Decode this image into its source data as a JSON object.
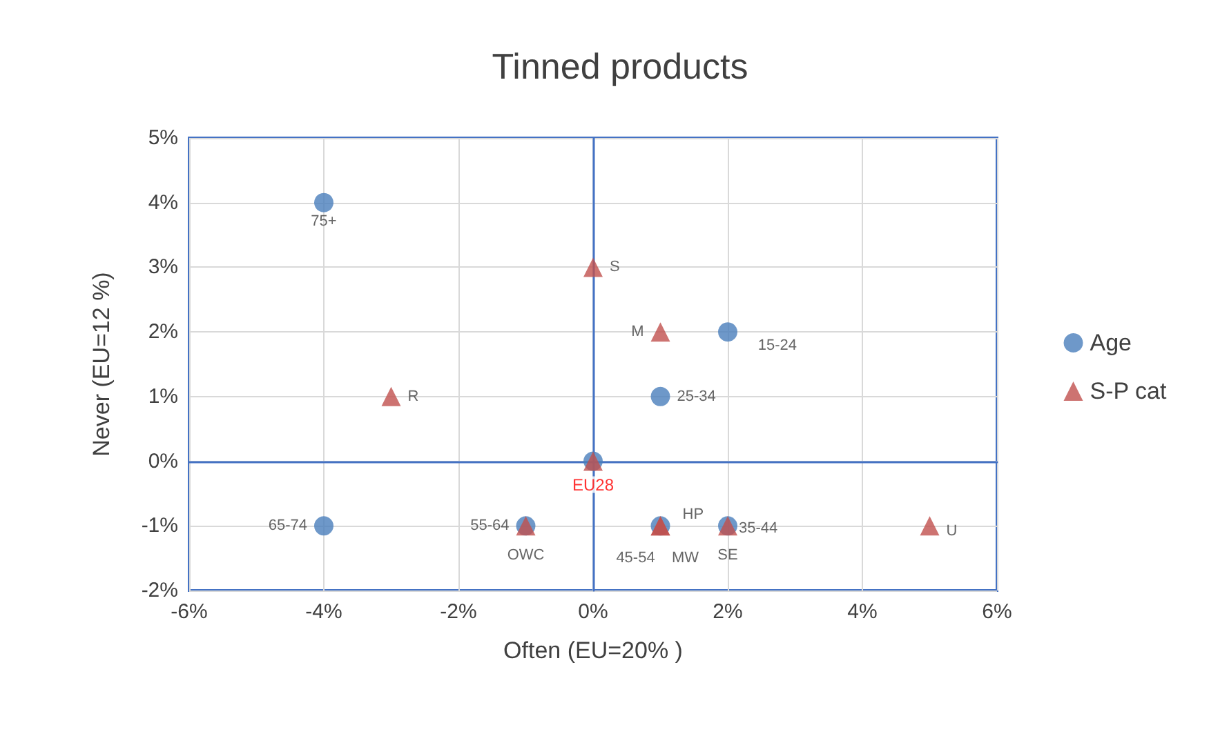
{
  "chart_data": {
    "type": "scatter",
    "title": "Tinned products",
    "xlabel": "Often (EU=20% )",
    "ylabel": "Never (EU=12 %)",
    "xlim": [
      -6,
      6
    ],
    "xticks": [
      {
        "value": -6,
        "label": "-6%"
      },
      {
        "value": -4,
        "label": "-4%"
      },
      {
        "value": -2,
        "label": "-2%"
      },
      {
        "value": 0,
        "label": "0%"
      },
      {
        "value": 2,
        "label": "2%"
      },
      {
        "value": 4,
        "label": "4%"
      },
      {
        "value": 6,
        "label": "6%"
      }
    ],
    "ylim": [
      -2,
      5
    ],
    "yticks": [
      {
        "value": -2,
        "label": "-2%"
      },
      {
        "value": -1,
        "label": "-1%"
      },
      {
        "value": 0,
        "label": "0%"
      },
      {
        "value": 1,
        "label": "1%"
      },
      {
        "value": 2,
        "label": "2%"
      },
      {
        "value": 3,
        "label": "3%"
      },
      {
        "value": 4,
        "label": "4%"
      },
      {
        "value": 5,
        "label": "5%"
      }
    ],
    "grid": true,
    "legend": "right",
    "annotations": [
      {
        "text": "EU28",
        "x": 0,
        "y": 0
      }
    ],
    "series": [
      {
        "name": "Age",
        "color": "#4a7ebb",
        "marker": "circle",
        "x": [
          -4,
          2,
          1,
          -4,
          -1,
          1,
          2,
          0
        ],
        "values": [
          4,
          2,
          1,
          -1,
          -1,
          -1,
          -1,
          0
        ],
        "value_labels": [
          "75+",
          "15-24",
          "25-34",
          "65-74",
          "55-64",
          "45-54",
          "35-44",
          null
        ]
      },
      {
        "name": "S-P cat",
        "color": "#c0504d",
        "marker": "triangle",
        "x": [
          0,
          1,
          -3,
          5,
          -1,
          1,
          2,
          1,
          0
        ],
        "values": [
          3,
          2,
          1,
          -1,
          -1,
          -1,
          -1,
          -1,
          0
        ],
        "value_labels": [
          "S",
          "M",
          "R",
          "U",
          "OWC",
          "MW",
          "SE",
          "HP",
          null
        ]
      }
    ]
  }
}
